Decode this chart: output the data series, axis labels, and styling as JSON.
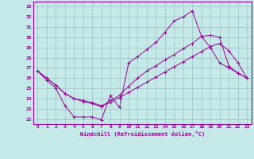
{
  "xlabel": "Windchill (Refroidissement éolien,°C)",
  "ylabel": "",
  "bg_color": "#c5e8e8",
  "line_color": "#990099",
  "grid_color": "#a0c0c0",
  "xlim": [
    -0.5,
    23.5
  ],
  "ylim": [
    21.5,
    33.5
  ],
  "xticks": [
    0,
    1,
    2,
    3,
    4,
    5,
    6,
    7,
    8,
    9,
    10,
    11,
    12,
    13,
    14,
    15,
    16,
    17,
    18,
    19,
    20,
    21,
    22,
    23
  ],
  "yticks": [
    22,
    23,
    24,
    25,
    26,
    27,
    28,
    29,
    30,
    31,
    32,
    33
  ],
  "series": [
    [
      26.7,
      25.8,
      25.0,
      23.3,
      22.2,
      22.2,
      22.2,
      21.9,
      24.3,
      23.1,
      27.5,
      28.1,
      28.8,
      29.5,
      30.5,
      31.6,
      32.0,
      32.6,
      30.1,
      29.0,
      27.5,
      27.0,
      26.5,
      26.0
    ],
    [
      26.7,
      26.0,
      25.3,
      24.5,
      24.0,
      23.8,
      23.6,
      23.3,
      23.6,
      24.1,
      24.6,
      25.1,
      25.6,
      26.1,
      26.6,
      27.1,
      27.6,
      28.1,
      28.6,
      29.1,
      29.4,
      28.7,
      27.5,
      26.0
    ],
    [
      26.7,
      26.0,
      25.3,
      24.5,
      24.0,
      23.7,
      23.5,
      23.2,
      23.8,
      24.3,
      25.2,
      26.0,
      26.7,
      27.2,
      27.8,
      28.3,
      28.9,
      29.4,
      30.1,
      30.2,
      30.0,
      27.2,
      26.5,
      26.0
    ]
  ]
}
